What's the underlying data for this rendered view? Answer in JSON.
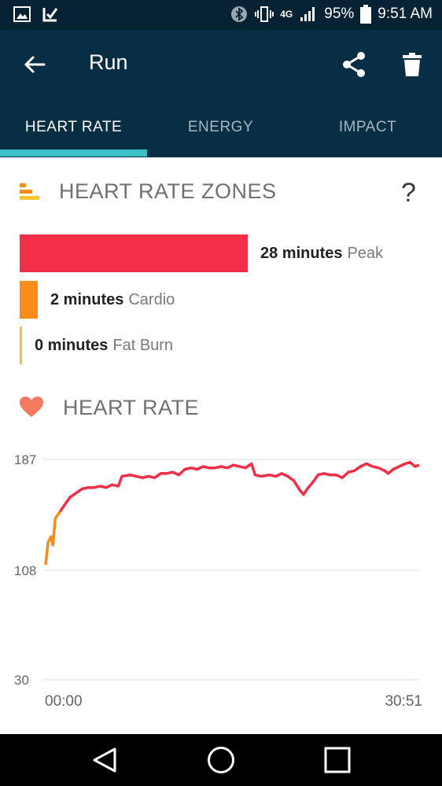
{
  "status_bar": {
    "network": "4G",
    "battery": "95%",
    "time": "9:51 AM"
  },
  "app_bar": {
    "title": "Run"
  },
  "tabs": [
    {
      "label": "HEART RATE",
      "active": true
    },
    {
      "label": "ENERGY",
      "active": false
    },
    {
      "label": "IMPACT",
      "active": false
    }
  ],
  "zones": {
    "title": "HEART RATE ZONES",
    "help_label": "?",
    "items": [
      {
        "minutes": "28 minutes",
        "name": "Peak",
        "value": 28,
        "color": "#f22f46"
      },
      {
        "minutes": "2 minutes",
        "name": "Cardio",
        "value": 2,
        "color": "#f98c1b"
      },
      {
        "minutes": "0 minutes",
        "name": "Fat Burn",
        "value": 0,
        "color": "#f4c431"
      }
    ]
  },
  "heart_rate": {
    "title": "HEART RATE"
  },
  "chart_data": {
    "type": "line",
    "y_ticks": [
      "187",
      "108",
      "30"
    ],
    "ylim": [
      30,
      187
    ],
    "x_ticks": [
      "00:00",
      "30:51"
    ],
    "xlim_minutes": [
      0,
      30.85
    ],
    "series": [
      {
        "color": "#f22f46",
        "low_segment_color": "#f98c1b",
        "points": [
          [
            0.0,
            112
          ],
          [
            0.2,
            128
          ],
          [
            0.45,
            132
          ],
          [
            0.6,
            126
          ],
          [
            0.8,
            145
          ],
          [
            1.2,
            150
          ],
          [
            1.6,
            155
          ],
          [
            2.0,
            160
          ],
          [
            2.5,
            163
          ],
          [
            3.0,
            166
          ],
          [
            3.5,
            167
          ],
          [
            4.0,
            167
          ],
          [
            4.5,
            168
          ],
          [
            5.0,
            167
          ],
          [
            5.5,
            169
          ],
          [
            6.0,
            168
          ],
          [
            6.3,
            175
          ],
          [
            7.0,
            176
          ],
          [
            7.5,
            175
          ],
          [
            8.0,
            174
          ],
          [
            8.5,
            175
          ],
          [
            9.0,
            174
          ],
          [
            9.5,
            177
          ],
          [
            10.0,
            177
          ],
          [
            10.5,
            178
          ],
          [
            11.0,
            176
          ],
          [
            11.5,
            180
          ],
          [
            12.0,
            181
          ],
          [
            12.5,
            180
          ],
          [
            13.0,
            182
          ],
          [
            13.5,
            181
          ],
          [
            14.0,
            181
          ],
          [
            14.5,
            182
          ],
          [
            15.0,
            181
          ],
          [
            15.5,
            183
          ],
          [
            16.0,
            182
          ],
          [
            16.5,
            181
          ],
          [
            17.0,
            184
          ],
          [
            17.3,
            176
          ],
          [
            17.8,
            175
          ],
          [
            18.5,
            176
          ],
          [
            19.0,
            175
          ],
          [
            19.5,
            177
          ],
          [
            20.0,
            175
          ],
          [
            20.5,
            172
          ],
          [
            21.0,
            165
          ],
          [
            21.3,
            162
          ],
          [
            21.6,
            166
          ],
          [
            22.0,
            170
          ],
          [
            22.5,
            176
          ],
          [
            23.0,
            177
          ],
          [
            23.5,
            176
          ],
          [
            24.0,
            176
          ],
          [
            24.5,
            174
          ],
          [
            25.0,
            178
          ],
          [
            25.5,
            179
          ],
          [
            26.0,
            182
          ],
          [
            26.5,
            184
          ],
          [
            27.0,
            182
          ],
          [
            27.5,
            181
          ],
          [
            28.0,
            179
          ],
          [
            28.3,
            177
          ],
          [
            28.7,
            180
          ],
          [
            29.2,
            182
          ],
          [
            29.7,
            184
          ],
          [
            30.1,
            185
          ],
          [
            30.5,
            182
          ],
          [
            30.85,
            183
          ]
        ]
      }
    ]
  }
}
